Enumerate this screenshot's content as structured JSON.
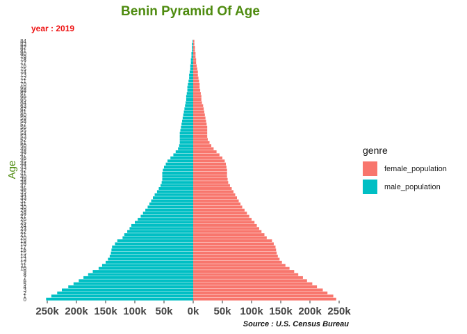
{
  "chart_data": {
    "type": "bar",
    "orientation": "horizontal",
    "title": "Benin Pyramid Of Age",
    "subtitle": "year : 2019",
    "ylabel": "Age",
    "xlabel": "",
    "caption": "Source : U.S. Census Bureau",
    "legend_title": "genre",
    "legend_position": "right",
    "grid": false,
    "xlim": [
      -255000,
      255000
    ],
    "x_ticks": [
      {
        "value": -250000,
        "label": "250k"
      },
      {
        "value": -200000,
        "label": "200k"
      },
      {
        "value": -150000,
        "label": "150k"
      },
      {
        "value": -100000,
        "label": "100k"
      },
      {
        "value": -50000,
        "label": "50k"
      },
      {
        "value": 0,
        "label": "0k"
      },
      {
        "value": 50000,
        "label": "50k"
      },
      {
        "value": 100000,
        "label": "100k"
      },
      {
        "value": 150000,
        "label": "150k"
      },
      {
        "value": 200000,
        "label": "200k"
      },
      {
        "value": 250000,
        "label": "250k"
      }
    ],
    "ages": [
      0,
      1,
      2,
      3,
      4,
      5,
      6,
      7,
      8,
      9,
      10,
      11,
      12,
      13,
      14,
      15,
      16,
      17,
      18,
      19,
      20,
      21,
      22,
      23,
      24,
      25,
      26,
      27,
      28,
      29,
      30,
      31,
      32,
      33,
      34,
      35,
      36,
      37,
      38,
      39,
      40,
      41,
      42,
      43,
      44,
      45,
      46,
      47,
      48,
      49,
      50,
      51,
      52,
      53,
      54,
      55,
      56,
      57,
      58,
      59,
      60,
      61,
      62,
      63,
      64,
      65,
      66,
      67,
      68,
      69,
      70,
      71,
      72,
      73,
      74,
      75,
      76,
      77,
      78,
      79,
      80,
      81,
      82,
      83,
      84
    ],
    "series": [
      {
        "name": "female_population",
        "color": "#f8766d",
        "values": [
          245000,
          240000,
          230000,
          222000,
          212000,
          204000,
          195000,
          188000,
          180000,
          173000,
          165000,
          158000,
          152000,
          148000,
          145000,
          143000,
          142000,
          141000,
          138000,
          135000,
          126000,
          122000,
          117000,
          113000,
          109000,
          105000,
          100000,
          96000,
          92000,
          88000,
          84000,
          81000,
          78000,
          75000,
          72000,
          69000,
          66000,
          63000,
          60000,
          59000,
          58000,
          58000,
          58000,
          57000,
          56000,
          54000,
          50000,
          45000,
          40000,
          35000,
          31000,
          28000,
          25000,
          24000,
          24000,
          24000,
          24000,
          23000,
          22000,
          21000,
          20000,
          19000,
          18000,
          17000,
          15000,
          14000,
          14000,
          13000,
          12000,
          11000,
          11000,
          10000,
          9000,
          8000,
          8000,
          7000,
          6000,
          5000,
          5000,
          4000,
          4000,
          3000,
          3000,
          2000,
          2000
        ]
      },
      {
        "name": "male_population",
        "color": "#00bfc4",
        "values": [
          252000,
          243000,
          233000,
          225000,
          214000,
          205000,
          196000,
          188000,
          180000,
          172000,
          162000,
          156000,
          150000,
          146000,
          143000,
          141000,
          140000,
          139000,
          134000,
          130000,
          121000,
          118000,
          113000,
          109000,
          106000,
          100000,
          95000,
          90000,
          86000,
          82000,
          78000,
          75000,
          72000,
          69000,
          66000,
          62000,
          59000,
          56000,
          54000,
          53000,
          53000,
          53000,
          52000,
          50000,
          47000,
          44000,
          39000,
          34000,
          30000,
          26000,
          24000,
          23000,
          23000,
          23000,
          23000,
          22000,
          21000,
          20000,
          19000,
          18000,
          17000,
          16000,
          15000,
          14000,
          13000,
          12000,
          12000,
          11000,
          10000,
          10000,
          9000,
          8000,
          7000,
          7000,
          6000,
          5000,
          5000,
          4000,
          4000,
          3000,
          3000,
          2000,
          2000,
          2000,
          1000
        ]
      }
    ]
  }
}
